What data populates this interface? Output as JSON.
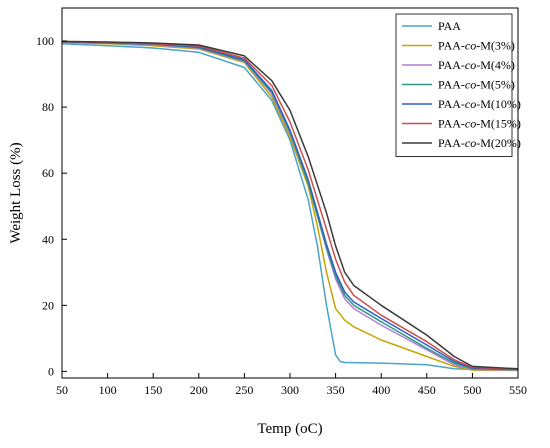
{
  "chart_data": {
    "type": "line",
    "title": "",
    "xlabel": "Temp (oC)",
    "ylabel": "Weight Loss (%)",
    "xlim": [
      50,
      550
    ],
    "ylim": [
      -2,
      110
    ],
    "xticks": [
      50,
      100,
      150,
      200,
      250,
      300,
      350,
      400,
      450,
      500,
      550
    ],
    "yticks": [
      0,
      20,
      40,
      60,
      80,
      100
    ],
    "grid": false,
    "legend_position": "top-right",
    "series": [
      {
        "name": "PAA",
        "legend_parts": [
          {
            "text": "PAA",
            "italic": false
          }
        ],
        "color": "#4aa3c8",
        "x": [
          50,
          100,
          150,
          200,
          250,
          280,
          300,
          320,
          330,
          340,
          350,
          355,
          360,
          400,
          450,
          480,
          500,
          550
        ],
        "y": [
          99.2,
          98.6,
          97.9,
          96.6,
          92,
          82,
          70,
          52,
          38,
          20,
          5,
          3,
          2.7,
          2.5,
          2,
          0.8,
          0.6,
          0.5
        ]
      },
      {
        "name": "PAA-co-M(3%)",
        "legend_parts": [
          {
            "text": "PAA-",
            "italic": false
          },
          {
            "text": "co",
            "italic": true
          },
          {
            "text": "-M(3%)",
            "italic": false
          }
        ],
        "color": "#c8a400",
        "x": [
          50,
          100,
          150,
          200,
          250,
          280,
          300,
          320,
          330,
          340,
          350,
          360,
          370,
          400,
          450,
          480,
          500,
          550
        ],
        "y": [
          99.6,
          99.2,
          98.6,
          97.6,
          93.5,
          83,
          71,
          56,
          44,
          30,
          19,
          15.5,
          13.5,
          9.5,
          4.5,
          1.5,
          0.4,
          0.3
        ]
      },
      {
        "name": "PAA-co-M(4%)",
        "legend_parts": [
          {
            "text": "PAA-",
            "italic": false
          },
          {
            "text": "co",
            "italic": true
          },
          {
            "text": "-M(4%)",
            "italic": false
          }
        ],
        "color": "#b57ed8",
        "x": [
          50,
          100,
          150,
          200,
          250,
          280,
          300,
          320,
          340,
          350,
          360,
          370,
          400,
          450,
          480,
          500,
          550
        ],
        "y": [
          99.6,
          99.3,
          98.8,
          97.8,
          93.8,
          84,
          72,
          57,
          37,
          28,
          22,
          19,
          14,
          6.5,
          2,
          0.6,
          0.4
        ]
      },
      {
        "name": "PAA-co-M(5%)",
        "legend_parts": [
          {
            "text": "PAA-",
            "italic": false
          },
          {
            "text": "co",
            "italic": true
          },
          {
            "text": "-M(5%)",
            "italic": false
          }
        ],
        "color": "#2e9a86",
        "x": [
          50,
          100,
          150,
          200,
          250,
          280,
          300,
          320,
          340,
          350,
          360,
          370,
          400,
          450,
          480,
          500,
          550
        ],
        "y": [
          99.7,
          99.4,
          99,
          98,
          94,
          84.5,
          72.5,
          57,
          37.5,
          29,
          23,
          20,
          15,
          7,
          2.5,
          0.8,
          0.5
        ]
      },
      {
        "name": "PAA-co-M(10%)",
        "legend_parts": [
          {
            "text": "PAA-",
            "italic": false
          },
          {
            "text": "co",
            "italic": true
          },
          {
            "text": "-M(10%)",
            "italic": false
          }
        ],
        "color": "#2f5fc4",
        "x": [
          50,
          100,
          150,
          200,
          250,
          280,
          300,
          320,
          340,
          350,
          360,
          370,
          400,
          450,
          480,
          500,
          550
        ],
        "y": [
          99.8,
          99.5,
          99.1,
          98.2,
          94.3,
          85,
          73,
          58,
          38.5,
          30,
          24,
          21,
          16,
          8,
          3,
          1,
          0.6
        ]
      },
      {
        "name": "PAA-co-M(15%)",
        "legend_parts": [
          {
            "text": "PAA-",
            "italic": false
          },
          {
            "text": "co",
            "italic": true
          },
          {
            "text": "-M(15%)",
            "italic": false
          }
        ],
        "color": "#c9504a",
        "x": [
          50,
          100,
          150,
          200,
          250,
          280,
          300,
          320,
          340,
          350,
          360,
          370,
          400,
          450,
          480,
          500,
          550
        ],
        "y": [
          99.8,
          99.6,
          99.2,
          98.5,
          94.8,
          86.5,
          75.5,
          61,
          43,
          34,
          27,
          23,
          17,
          9,
          3.5,
          1.2,
          0.7
        ]
      },
      {
        "name": "PAA-co-M(20%)",
        "legend_parts": [
          {
            "text": "PAA-",
            "italic": false
          },
          {
            "text": "co",
            "italic": true
          },
          {
            "text": "-M(20%)",
            "italic": false
          }
        ],
        "color": "#3a3a3a",
        "x": [
          50,
          100,
          150,
          200,
          250,
          280,
          300,
          320,
          340,
          350,
          360,
          370,
          400,
          450,
          480,
          500,
          550
        ],
        "y": [
          99.9,
          99.7,
          99.4,
          98.8,
          95.5,
          88,
          79,
          65,
          48,
          38,
          30,
          26,
          20,
          11,
          4.5,
          1.5,
          0.8
        ]
      }
    ]
  }
}
